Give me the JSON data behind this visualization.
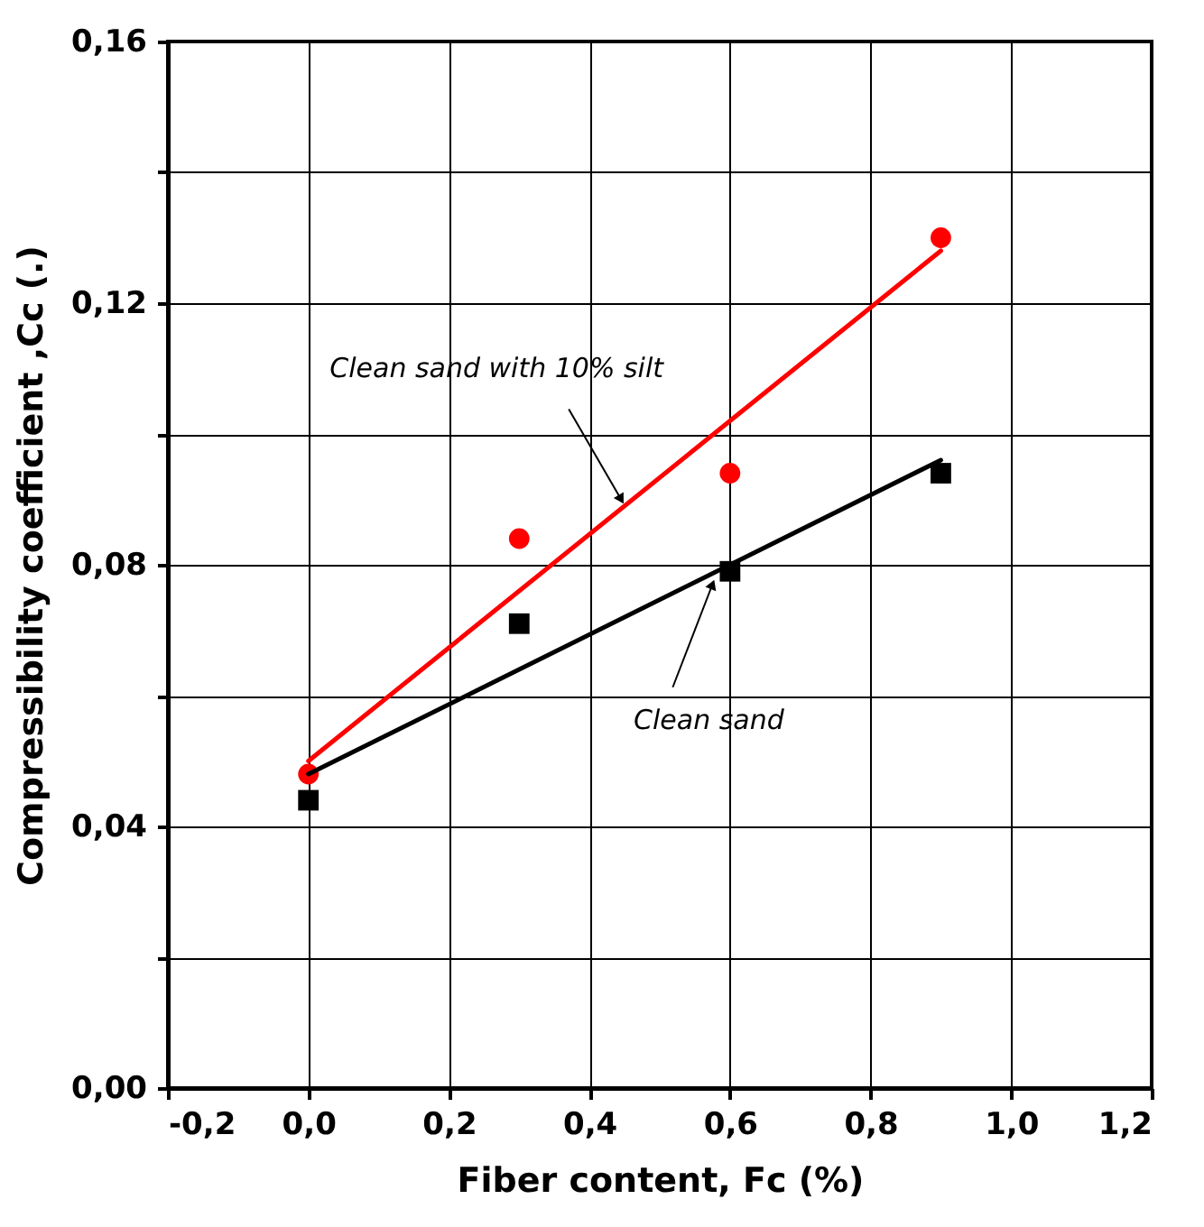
{
  "chart_data": {
    "type": "scatter",
    "xlabel": "Fiber content, Fc (%)",
    "ylabel": "Compressibility coefficient ,Cc (.)",
    "xlim": [
      -0.2,
      1.2
    ],
    "xticks": [
      {
        "value": -0.2,
        "label": "-0,2"
      },
      {
        "value": 0,
        "label": "0,0"
      },
      {
        "value": 0.2,
        "label": "0,2"
      },
      {
        "value": 0.4,
        "label": "0,4"
      },
      {
        "value": 0.6,
        "label": "0,6"
      },
      {
        "value": 0.8,
        "label": "0,8"
      },
      {
        "value": 1.0,
        "label": "1,0"
      },
      {
        "value": 1.2,
        "label": "1,2"
      }
    ],
    "ylim": [
      0,
      0.16
    ],
    "yticks": [
      {
        "value": 0,
        "label": "0,00"
      },
      {
        "value": 0.02,
        "label": null
      },
      {
        "value": 0.04,
        "label": "0,04"
      },
      {
        "value": 0.06,
        "label": null
      },
      {
        "value": 0.08,
        "label": "0,08"
      },
      {
        "value": 0.1,
        "label": null
      },
      {
        "value": 0.12,
        "label": "0,12"
      },
      {
        "value": 0.14,
        "label": null
      },
      {
        "value": 0.16,
        "label": "0,16"
      }
    ],
    "grid": true,
    "series": [
      {
        "type": "scatter",
        "marker": "circle",
        "color": "#ff0000",
        "x": [
          0,
          0.3,
          0.6,
          0.9
        ],
        "values": [
          0.048,
          0.084,
          0.094,
          0.13
        ]
      },
      {
        "type": "scatter",
        "marker": "square",
        "color": "#000000",
        "x": [
          0,
          0.3,
          0.6,
          0.9
        ],
        "values": [
          0.044,
          0.071,
          0.079,
          0.094
        ]
      },
      {
        "type": "line",
        "color": "#ff0000",
        "x": [
          0,
          0.9
        ],
        "values": [
          0.05,
          0.128
        ]
      },
      {
        "type": "line",
        "color": "#000000",
        "x": [
          0,
          0.9
        ],
        "values": [
          0.048,
          0.096
        ]
      }
    ],
    "annotations": [
      {
        "text": "Clean sand with 10% silt",
        "x": 0.445,
        "y": 0.09
      },
      {
        "text": "Clean sand",
        "x": 0.575,
        "y": 0.077
      }
    ]
  }
}
